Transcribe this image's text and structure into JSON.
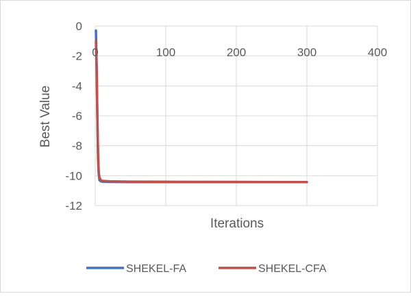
{
  "chart_data": {
    "type": "line",
    "title": "",
    "xlabel": "Iterations",
    "ylabel": "Best Value",
    "xlim": [
      0,
      400
    ],
    "ylim": [
      -12,
      0
    ],
    "x_ticks": [
      0,
      100,
      200,
      300,
      400
    ],
    "y_ticks": [
      0,
      -2,
      -4,
      -6,
      -8,
      -10,
      -12
    ],
    "x_axis_position": "top (at y = 0)",
    "grid": true,
    "legend_position": "bottom",
    "series": [
      {
        "name": "SHEKEL-FA",
        "color": "#4472C4",
        "x": [
          1,
          2,
          3,
          4,
          5,
          6,
          8,
          10,
          20,
          50,
          100,
          200,
          300
        ],
        "y": [
          -0.3,
          -2.5,
          -6.0,
          -8.8,
          -9.9,
          -10.3,
          -10.38,
          -10.4,
          -10.42,
          -10.43,
          -10.43,
          -10.43,
          -10.43
        ]
      },
      {
        "name": "SHEKEL-CFA",
        "color": "#C0504D",
        "x": [
          1,
          2,
          3,
          4,
          5,
          6,
          7,
          8,
          10,
          20,
          50,
          100,
          200,
          300
        ],
        "y": [
          -1.0,
          -3.0,
          -6.0,
          -8.5,
          -9.8,
          -10.1,
          -10.2,
          -10.3,
          -10.35,
          -10.38,
          -10.4,
          -10.41,
          -10.42,
          -10.43
        ]
      }
    ]
  }
}
